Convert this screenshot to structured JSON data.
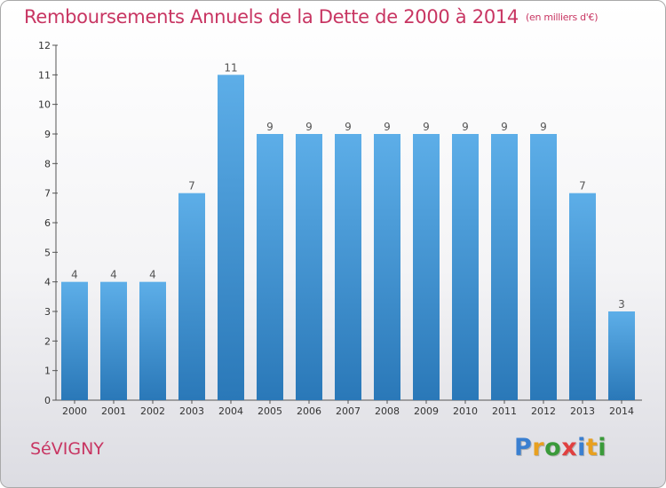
{
  "page": {
    "title": "Remboursements Annuels de la Dette de 2000 à 2014",
    "title_unit": "(en milliers d'€)",
    "commune": "SéVIGNY",
    "logo_text": "Proxiti",
    "logo_letters": [
      {
        "char": "P",
        "color": "#3a7fd0"
      },
      {
        "char": "r",
        "color": "#e8a020"
      },
      {
        "char": "o",
        "color": "#3a9a3a"
      },
      {
        "char": "x",
        "color": "#e04040"
      },
      {
        "char": "i",
        "color": "#3a7fd0"
      },
      {
        "char": "t",
        "color": "#e8a020"
      },
      {
        "char": "i",
        "color": "#3a9a3a"
      }
    ]
  },
  "chart_data": {
    "type": "bar",
    "title": "Remboursements Annuels de la Dette de 2000 à 2014",
    "subtitle": "(en milliers d'€)",
    "xlabel": "",
    "ylabel": "",
    "categories": [
      "2000",
      "2001",
      "2002",
      "2003",
      "2004",
      "2005",
      "2006",
      "2007",
      "2008",
      "2009",
      "2010",
      "2011",
      "2012",
      "2013",
      "2014"
    ],
    "values": [
      4,
      4,
      4,
      7,
      11,
      9,
      9,
      9,
      9,
      9,
      9,
      9,
      9,
      7,
      3
    ],
    "ylim": [
      0,
      12
    ],
    "yticks": [
      0,
      1,
      2,
      3,
      4,
      5,
      6,
      7,
      8,
      9,
      10,
      11,
      12
    ],
    "grid": false,
    "colors": {
      "bar_top": "#5daee8",
      "bar_bottom": "#2a78b8",
      "title": "#c83562"
    }
  }
}
